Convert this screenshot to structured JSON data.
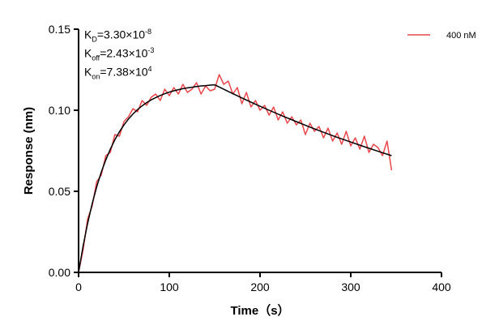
{
  "chart_data": {
    "type": "line",
    "xlabel": "Time（s）",
    "ylabel": "Response (nm)",
    "xlim": [
      0,
      400
    ],
    "ylim": [
      0,
      0.15
    ],
    "xticks": [
      "0",
      "100",
      "200",
      "300",
      "400"
    ],
    "yticks": [
      "0.00",
      "0.05",
      "0.10",
      "0.15"
    ],
    "grid": false,
    "legend_position": "top-right",
    "annotations": [
      {
        "base": "K",
        "sub": "D",
        "text": "=3.30×10",
        "sup": "-8"
      },
      {
        "base": "K",
        "sub": "off",
        "text": "=2.43×10",
        "sup": "-3"
      },
      {
        "base": "K",
        "sub": "on",
        "text": "=7.38×10",
        "sup": "4"
      }
    ],
    "series": [
      {
        "name": "400 nM",
        "color": "#e8474b",
        "x": [
          0,
          5,
          10,
          15,
          20,
          25,
          30,
          35,
          40,
          45,
          50,
          55,
          60,
          65,
          70,
          75,
          80,
          85,
          90,
          95,
          100,
          105,
          110,
          115,
          120,
          125,
          130,
          135,
          140,
          145,
          150,
          155,
          160,
          165,
          170,
          175,
          180,
          185,
          190,
          195,
          200,
          205,
          210,
          215,
          220,
          225,
          230,
          235,
          240,
          245,
          250,
          255,
          260,
          265,
          270,
          275,
          280,
          285,
          290,
          295,
          300,
          305,
          310,
          315,
          320,
          325,
          330,
          335,
          340,
          345
        ],
        "y": [
          0,
          0.014,
          0.033,
          0.041,
          0.056,
          0.06,
          0.072,
          0.074,
          0.085,
          0.084,
          0.093,
          0.096,
          0.101,
          0.099,
          0.106,
          0.103,
          0.108,
          0.11,
          0.106,
          0.113,
          0.109,
          0.114,
          0.11,
          0.116,
          0.111,
          0.113,
          0.117,
          0.11,
          0.115,
          0.112,
          0.113,
          0.122,
          0.116,
          0.118,
          0.11,
          0.114,
          0.104,
          0.111,
          0.102,
          0.106,
          0.1,
          0.103,
          0.097,
          0.102,
          0.094,
          0.099,
          0.092,
          0.096,
          0.091,
          0.094,
          0.085,
          0.092,
          0.087,
          0.09,
          0.083,
          0.089,
          0.081,
          0.086,
          0.079,
          0.087,
          0.078,
          0.083,
          0.076,
          0.084,
          0.074,
          0.079,
          0.077,
          0.072,
          0.081,
          0.063
        ]
      },
      {
        "name": "",
        "color": "#000000",
        "x": [
          0,
          5,
          10,
          15,
          20,
          25,
          30,
          35,
          40,
          45,
          50,
          55,
          60,
          65,
          70,
          75,
          80,
          85,
          90,
          95,
          100,
          105,
          110,
          115,
          120,
          125,
          130,
          135,
          140,
          145,
          150,
          165,
          180,
          195,
          210,
          225,
          240,
          255,
          270,
          285,
          300,
          315,
          330,
          345
        ],
        "y": [
          0,
          0.0163,
          0.0303,
          0.0424,
          0.0528,
          0.0618,
          0.0694,
          0.076,
          0.0818,
          0.0867,
          0.0909,
          0.0946,
          0.0977,
          0.1004,
          0.1027,
          0.1047,
          0.1064,
          0.1078,
          0.1091,
          0.1102,
          0.1112,
          0.112,
          0.1127,
          0.1133,
          0.1138,
          0.1142,
          0.1146,
          0.115,
          0.1152,
          0.1155,
          0.1157,
          0.1116,
          0.1076,
          0.1037,
          0.1,
          0.0964,
          0.093,
          0.0896,
          0.0864,
          0.0833,
          0.0804,
          0.0775,
          0.0747,
          0.072
        ]
      }
    ]
  }
}
